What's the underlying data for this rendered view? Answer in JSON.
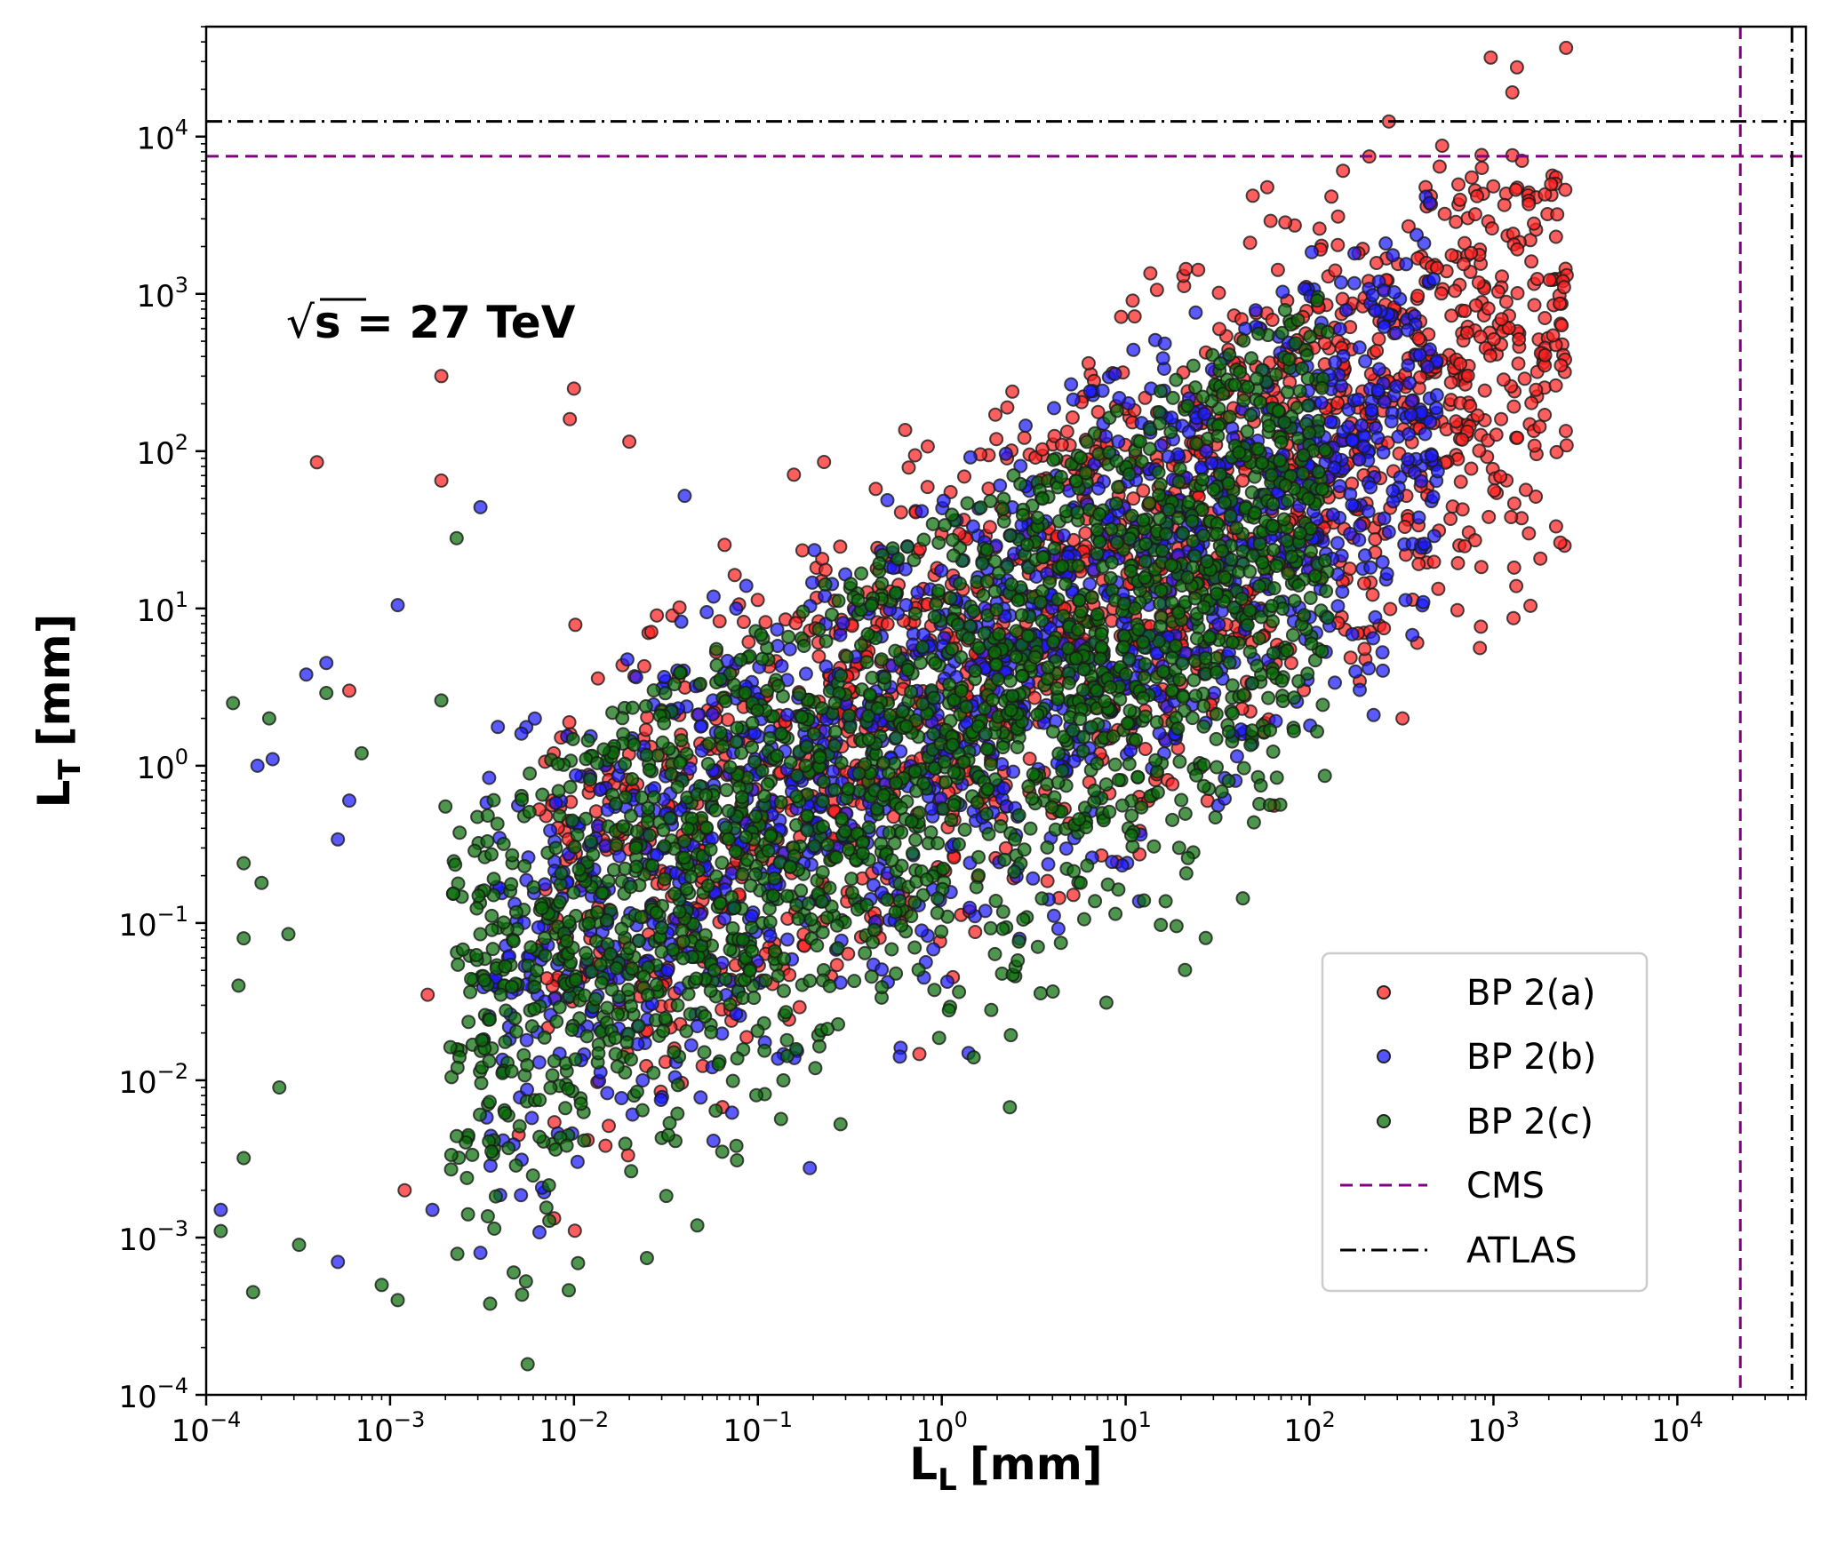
{
  "chart_data": {
    "type": "scatter",
    "xscale": "log",
    "yscale": "log",
    "xlim": [
      0.0001,
      50000
    ],
    "ylim": [
      0.0001,
      50000
    ],
    "xlabel_main": "L",
    "xlabel_sub": "L",
    "xlabel_unit": "[mm]",
    "ylabel_main": "L",
    "ylabel_sub": "T",
    "ylabel_unit": "[mm]",
    "x_tick_exponents": [
      "-4",
      "-3",
      "-2",
      "-1",
      "0",
      "1",
      "2",
      "3",
      "4"
    ],
    "y_tick_exponents": [
      "-4",
      "-3",
      "-2",
      "-1",
      "0",
      "1",
      "2",
      "3",
      "4"
    ],
    "tick_base": "10",
    "annotation": {
      "sqrt": "√",
      "s": "s",
      "rest": " = 27 TeV"
    },
    "series": [
      {
        "name": "BP 2(a)",
        "color": "#ff2020",
        "description_points": "scatter band",
        "band": {
          "x_range": [
            -2.2,
            3.4
          ],
          "y_center_slope": 0.72,
          "y_center_offset": 0.55,
          "spread": 1.0,
          "upper_cut_offset": 1.9
        },
        "outliers": [
          [
            0.0004,
            85
          ],
          [
            0.0019,
            300
          ],
          [
            0.0019,
            65
          ],
          [
            0.01,
            250
          ],
          [
            0.0095,
            160
          ],
          [
            0.02,
            115
          ],
          [
            0.0006,
            3
          ],
          [
            0.0016,
            0.035
          ],
          [
            0.005,
            0.0045
          ],
          [
            0.0012,
            0.002
          ]
        ]
      },
      {
        "name": "BP 2(b)",
        "color": "#1a1aff",
        "band": {
          "x_range": [
            -2.5,
            2.7
          ],
          "y_center_slope": 0.7,
          "y_center_offset": 0.35,
          "spread": 1.0,
          "upper_cut_offset": 1.6
        },
        "outliers": [
          [
            0.0031,
            44
          ],
          [
            0.0011,
            10.5
          ],
          [
            0.00035,
            3.8
          ],
          [
            0.00045,
            4.5
          ],
          [
            0.00019,
            1.0
          ],
          [
            0.00023,
            1.1
          ],
          [
            0.0006,
            0.6
          ],
          [
            0.00052,
            0.34
          ],
          [
            0.00012,
            0.0015
          ],
          [
            0.00052,
            0.0007
          ],
          [
            0.0017,
            0.0015
          ],
          [
            0.0031,
            0.0008
          ],
          [
            0.7,
            0.27
          ],
          [
            0.8,
            0.045
          ],
          [
            0.04,
            52
          ]
        ]
      },
      {
        "name": "BP 2(c)",
        "color": "#0a6e0a",
        "band": {
          "x_range": [
            -2.7,
            2.1
          ],
          "y_center_slope": 0.7,
          "y_center_offset": 0.2,
          "spread": 1.05,
          "upper_cut_offset": 1.4
        },
        "outliers": [
          [
            0.00014,
            2.5
          ],
          [
            0.00022,
            2.0
          ],
          [
            0.00016,
            0.24
          ],
          [
            0.00016,
            0.08
          ],
          [
            0.00015,
            0.04
          ],
          [
            0.00012,
            0.0011
          ],
          [
            0.00018,
            0.00045
          ],
          [
            0.00016,
            0.0032
          ],
          [
            0.00025,
            0.009
          ],
          [
            0.0002,
            0.18
          ],
          [
            0.00028,
            0.085
          ],
          [
            0.00045,
            2.9
          ],
          [
            0.0023,
            28
          ],
          [
            0.0019,
            2.6
          ],
          [
            0.0007,
            1.2
          ],
          [
            0.0011,
            0.0004
          ],
          [
            0.0009,
            0.0005
          ],
          [
            0.0035,
            0.00038
          ],
          [
            0.0047,
            0.0006
          ],
          [
            0.077,
            0.0031
          ],
          [
            0.00032,
            0.0009
          ],
          [
            0.002,
            0.55
          ],
          [
            0.004,
            0.035
          ]
        ]
      }
    ],
    "reference_lines": [
      {
        "name": "CMS",
        "color": "#800080",
        "style": "dashed",
        "x": 22000,
        "y": 7500
      },
      {
        "name": "ATLAS",
        "color": "#000000",
        "style": "dashdot",
        "x": 42000,
        "y": 12500
      }
    ],
    "legend": {
      "placement": "lower-right",
      "entries": [
        {
          "label": "BP 2(a)",
          "kind": "marker",
          "color": "#ff2020"
        },
        {
          "label": "BP 2(b)",
          "kind": "marker",
          "color": "#1a1aff"
        },
        {
          "label": "BP 2(c)",
          "kind": "marker",
          "color": "#0a6e0a"
        },
        {
          "label": "CMS",
          "kind": "line",
          "color": "#800080",
          "style": "dashed"
        },
        {
          "label": "ATLAS",
          "kind": "line",
          "color": "#000000",
          "style": "dashdot"
        }
      ]
    }
  }
}
